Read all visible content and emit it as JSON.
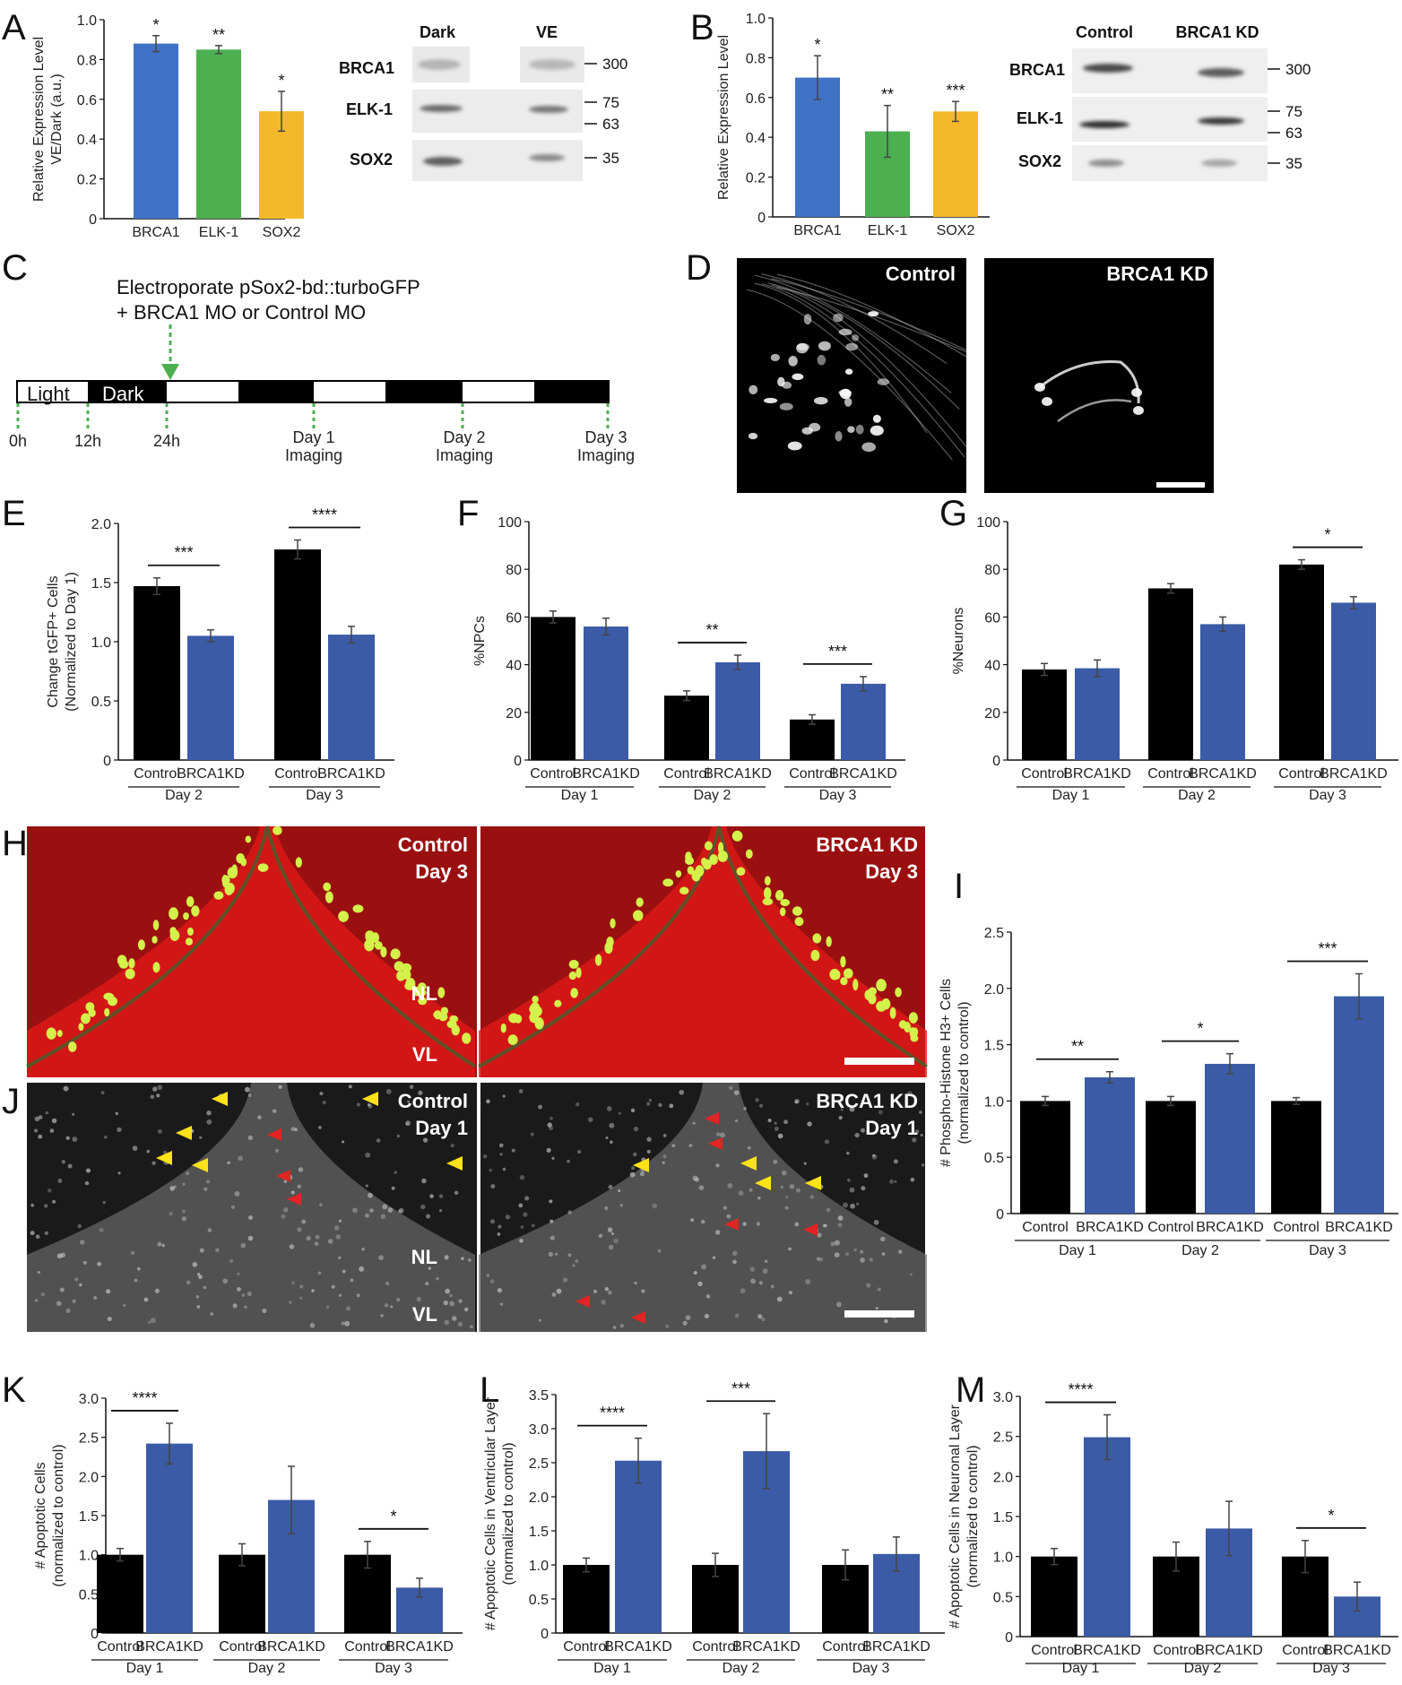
{
  "panels": [
    "A",
    "B",
    "C",
    "D",
    "E",
    "F",
    "G",
    "H",
    "I",
    "J",
    "K",
    "L",
    "M"
  ],
  "chart_data": [
    {
      "id": "A",
      "type": "bar",
      "categories": [
        "BRCA1",
        "ELK-1",
        "SOX2"
      ],
      "values": [
        0.88,
        0.85,
        0.54
      ],
      "errors": [
        0.04,
        0.02,
        0.1
      ],
      "sig": [
        "*",
        "**",
        "*"
      ],
      "colors": [
        "#3f72c4",
        "#4caf50",
        "#f4b82a"
      ],
      "ylim": [
        0,
        1.0
      ],
      "yticks": [
        0,
        0.2,
        0.4,
        0.6,
        0.8,
        1.0
      ],
      "ytick_labels": [
        "0",
        "0.2",
        "0.4",
        "0.6",
        "0.8",
        "1.0"
      ],
      "ylabel": [
        "Relative Expression Level",
        "VE/Dark (a.u.)"
      ]
    },
    {
      "id": "B",
      "type": "bar",
      "categories": [
        "BRCA1",
        "ELK-1",
        "SOX2"
      ],
      "values": [
        0.7,
        0.43,
        0.53
      ],
      "errors": [
        0.11,
        0.13,
        0.05
      ],
      "sig": [
        "*",
        "**",
        "***"
      ],
      "colors": [
        "#3f72c4",
        "#4caf50",
        "#f4b82a"
      ],
      "ylim": [
        0,
        1.0
      ],
      "yticks": [
        0,
        0.2,
        0.4,
        0.6,
        0.8,
        1.0
      ],
      "ytick_labels": [
        "0",
        "0.2",
        "0.4",
        "0.6",
        "0.8",
        "1.0"
      ],
      "ylabel": [
        "Relative Expression Level"
      ]
    },
    {
      "id": "E",
      "type": "bar",
      "series": [
        {
          "name": "Control",
          "values": [
            1.47,
            1.78
          ],
          "errors": [
            0.07,
            0.08
          ],
          "color": "#000000"
        },
        {
          "name": "BRCA1KD",
          "values": [
            1.05,
            1.06
          ],
          "errors": [
            0.05,
            0.07
          ],
          "color": "#3b5ba6"
        }
      ],
      "groups": [
        "Day 2",
        "Day 3"
      ],
      "group_sig": [
        "***",
        "****"
      ],
      "ylim": [
        0,
        2.0
      ],
      "yticks": [
        0,
        0.5,
        1.0,
        1.5,
        2.0
      ],
      "ytick_labels": [
        "0",
        "0.5",
        "1.0",
        "1.5",
        "2.0"
      ],
      "ylabel": [
        "Change tGFP+ Cells",
        "(Normalized to Day 1)"
      ]
    },
    {
      "id": "F",
      "type": "bar",
      "series": [
        {
          "name": "Control",
          "values": [
            60,
            27,
            17
          ],
          "errors": [
            2.5,
            2,
            2
          ],
          "color": "#000000"
        },
        {
          "name": "BRCA1KD",
          "values": [
            56,
            41,
            32
          ],
          "errors": [
            3.5,
            3,
            3
          ],
          "color": "#3b5ba6"
        }
      ],
      "groups": [
        "Day 1",
        "Day 2",
        "Day 3"
      ],
      "group_sig": [
        "",
        "**",
        "***"
      ],
      "ylim": [
        0,
        100
      ],
      "yticks": [
        0,
        20,
        40,
        60,
        80,
        100
      ],
      "ytick_labels": [
        "0",
        "20",
        "40",
        "60",
        "80",
        "100"
      ],
      "ylabel": [
        "%NPCs"
      ]
    },
    {
      "id": "G",
      "type": "bar",
      "series": [
        {
          "name": "Control",
          "values": [
            38,
            72,
            82
          ],
          "errors": [
            2.5,
            2,
            2
          ],
          "color": "#000000"
        },
        {
          "name": "BRCA1KD",
          "values": [
            38.5,
            57,
            66
          ],
          "errors": [
            3.5,
            3,
            2.5
          ],
          "color": "#3b5ba6"
        }
      ],
      "groups": [
        "Day 1",
        "Day 2",
        "Day 3"
      ],
      "group_sig": [
        "",
        "",
        "*"
      ],
      "ylim": [
        0,
        100
      ],
      "yticks": [
        0,
        20,
        40,
        60,
        80,
        100
      ],
      "ytick_labels": [
        "0",
        "20",
        "40",
        "60",
        "80",
        "100"
      ],
      "ylabel": [
        "%Neurons"
      ]
    },
    {
      "id": "I",
      "type": "bar",
      "series": [
        {
          "name": "Control",
          "values": [
            1.0,
            1.0,
            1.0
          ],
          "errors": [
            0.04,
            0.04,
            0.03
          ],
          "color": "#000000"
        },
        {
          "name": "BRCA1KD",
          "values": [
            1.21,
            1.33,
            1.93
          ],
          "errors": [
            0.05,
            0.09,
            0.2
          ],
          "color": "#3b5ba6"
        }
      ],
      "groups": [
        "Day 1",
        "Day 2",
        "Day 3"
      ],
      "group_sig": [
        "**",
        "*",
        "***"
      ],
      "ylim": [
        0,
        2.5
      ],
      "yticks": [
        0,
        0.5,
        1.0,
        1.5,
        2.0,
        2.5
      ],
      "ytick_labels": [
        "0",
        "0.5",
        "1.0",
        "1.5",
        "2.0",
        "2.5"
      ],
      "ylabel": [
        "# Phospho-Histone H3+ Cells",
        "(normalized to control)"
      ]
    },
    {
      "id": "K",
      "type": "bar",
      "series": [
        {
          "name": "Control",
          "values": [
            1.0,
            1.0,
            1.0
          ],
          "errors": [
            0.08,
            0.14,
            0.17
          ],
          "color": "#000000"
        },
        {
          "name": "BRCA1KD",
          "values": [
            2.42,
            1.7,
            0.58
          ],
          "errors": [
            0.26,
            0.43,
            0.12
          ],
          "color": "#3b5ba6"
        }
      ],
      "groups": [
        "Day 1",
        "Day 2",
        "Day 3"
      ],
      "group_sig": [
        "****",
        "",
        "*"
      ],
      "ylim": [
        0,
        3.0
      ],
      "yticks": [
        0,
        0.5,
        1.0,
        1.5,
        2.0,
        2.5,
        3.0
      ],
      "ytick_labels": [
        "0",
        "0.5",
        "1.0",
        "1.5",
        "2.0",
        "2.5",
        "3.0"
      ],
      "ylabel": [
        "# Apoptotic Cells",
        "(normalized to control)"
      ]
    },
    {
      "id": "L",
      "type": "bar",
      "series": [
        {
          "name": "Control",
          "values": [
            1.0,
            1.0,
            1.0
          ],
          "errors": [
            0.1,
            0.17,
            0.22
          ],
          "color": "#000000"
        },
        {
          "name": "BRCA1KD",
          "values": [
            2.53,
            2.67,
            1.16
          ],
          "errors": [
            0.33,
            0.55,
            0.25
          ],
          "color": "#3b5ba6"
        }
      ],
      "groups": [
        "Day 1",
        "Day 2",
        "Day 3"
      ],
      "group_sig": [
        "****",
        "***",
        ""
      ],
      "ylim": [
        0,
        3.5
      ],
      "yticks": [
        0,
        0.5,
        1.0,
        1.5,
        2.0,
        2.5,
        3.0,
        3.5
      ],
      "ytick_labels": [
        "0",
        "0.5",
        "1.0",
        "1.5",
        "2.0",
        "2.5",
        "3.0",
        "3.5"
      ],
      "ylabel": [
        "# Apoptotic Cells in Ventricular Layer",
        "(normalized to control)"
      ]
    },
    {
      "id": "M",
      "type": "bar",
      "series": [
        {
          "name": "Control",
          "values": [
            1.0,
            1.0,
            1.0
          ],
          "errors": [
            0.1,
            0.18,
            0.2
          ],
          "color": "#000000"
        },
        {
          "name": "BRCA1KD",
          "values": [
            2.49,
            1.35,
            0.5
          ],
          "errors": [
            0.28,
            0.34,
            0.18
          ],
          "color": "#3b5ba6"
        }
      ],
      "groups": [
        "Day 1",
        "Day 2",
        "Day 3"
      ],
      "group_sig": [
        "****",
        "",
        "*"
      ],
      "ylim": [
        0,
        3.0
      ],
      "yticks": [
        0,
        0.5,
        1.0,
        1.5,
        2.0,
        2.5,
        3.0
      ],
      "ytick_labels": [
        "0",
        "0.5",
        "1.0",
        "1.5",
        "2.0",
        "2.5",
        "3.0"
      ],
      "ylabel": [
        "# Apoptotic Cells in Neuronal Layer",
        "(normalized to control)"
      ]
    }
  ],
  "blots": {
    "A": {
      "columns": [
        "Dark",
        "VE"
      ],
      "rows": [
        "BRCA1",
        "ELK-1",
        "SOX2"
      ],
      "markers": [
        "300",
        "75",
        "63",
        "35"
      ]
    },
    "B": {
      "columns": [
        "Control",
        "BRCA1 KD"
      ],
      "rows": [
        "BRCA1",
        "ELK-1",
        "SOX2"
      ],
      "markers": [
        "300",
        "75",
        "63",
        "35"
      ]
    }
  },
  "timeline": {
    "title_line1": "Electroporate pSox2-bd::turboGFP",
    "title_line2": "+ BRCA1 MO or Control MO",
    "light": "Light",
    "dark": "Dark",
    "ticks": [
      "0h",
      "12h",
      "24h"
    ],
    "imaging": [
      {
        "day": "Day 1",
        "label": "Imaging"
      },
      {
        "day": "Day 2",
        "label": "Imaging"
      },
      {
        "day": "Day 3",
        "label": "Imaging"
      }
    ]
  },
  "micrographs": {
    "D": [
      "Control",
      "BRCA1 KD"
    ],
    "H": [
      {
        "line1": "Control",
        "line2": "Day 3",
        "layer1": "NL",
        "layer2": "VL"
      },
      {
        "line1": "BRCA1 KD",
        "line2": "Day 3"
      }
    ],
    "J": [
      {
        "line1": "Control",
        "line2": "Day 1",
        "layer1": "NL",
        "layer2": "VL"
      },
      {
        "line1": "BRCA1 KD",
        "line2": "Day 1"
      }
    ]
  }
}
